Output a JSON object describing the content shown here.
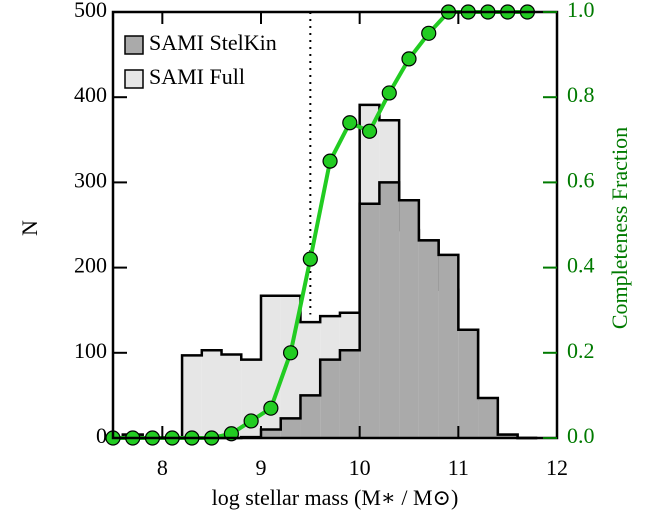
{
  "chart_data": {
    "type": "histogram",
    "xlabel": "log stellar mass (M∗ / M⊙)",
    "ylabel": "N",
    "y2label": "Completeness Fraction",
    "bins": [
      7.6,
      7.8,
      8.0,
      8.2,
      8.4,
      8.6,
      8.8,
      9.0,
      9.2,
      9.4,
      9.6,
      9.8,
      10.0,
      10.2,
      10.4,
      10.6,
      10.8,
      11.0,
      11.2,
      11.4,
      11.6,
      11.8
    ],
    "series": [
      {
        "name": "SAMI StelKin",
        "color": "#aaaaaa",
        "values": [
          4,
          0,
          0,
          0,
          0,
          0,
          1,
          10,
          23,
          50,
          92,
          103,
          275,
          300,
          279,
          232,
          215,
          127,
          47,
          4,
          0
        ]
      },
      {
        "name": "SAMI Full",
        "color": "#e6e6e6",
        "values": [
          4,
          0,
          0,
          97,
          103,
          98,
          92,
          167,
          167,
          136,
          143,
          147,
          391,
          373,
          244,
          232,
          174,
          127,
          45,
          4,
          0
        ]
      }
    ],
    "completeness": {
      "color": "#22cc22",
      "axis": "y2",
      "x": [
        7.5,
        7.7,
        7.9,
        8.1,
        8.3,
        8.5,
        8.7,
        8.9,
        9.1,
        9.3,
        9.5,
        9.7,
        9.9,
        10.1,
        10.3,
        10.5,
        10.7,
        10.9,
        11.1,
        11.3,
        11.5,
        11.7
      ],
      "values": [
        0,
        0,
        0,
        0,
        0,
        0,
        0.01,
        0.04,
        0.07,
        0.2,
        0.42,
        0.65,
        0.74,
        0.72,
        0.81,
        0.89,
        0.95,
        1.0,
        1.0,
        1.0,
        1.0,
        1.0
      ]
    },
    "reference_x": 9.5,
    "xlim": [
      7.5,
      12
    ],
    "xticks": [
      8,
      9,
      10,
      11,
      12
    ],
    "ylim": [
      0,
      500
    ],
    "yticks": [
      0,
      100,
      200,
      300,
      400,
      500
    ],
    "y2lim": [
      0,
      1
    ],
    "y2ticks": [
      {
        "value": 0,
        "label": "0.0"
      },
      {
        "value": 0.2,
        "label": "0.2"
      },
      {
        "value": 0.4,
        "label": "0.4"
      },
      {
        "value": 0.6,
        "label": "0.6"
      },
      {
        "value": 0.8,
        "label": "0.8"
      },
      {
        "value": 1,
        "label": "1.0"
      }
    ],
    "legend": "upper left"
  }
}
